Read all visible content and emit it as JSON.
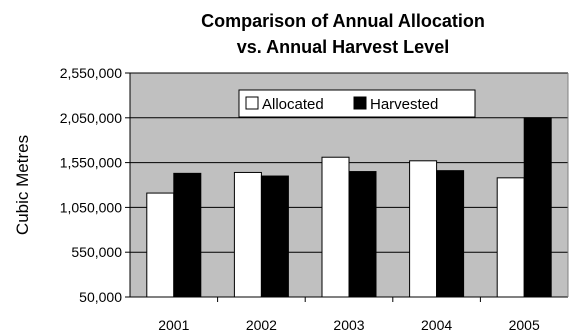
{
  "chart_data": {
    "type": "bar",
    "title": "Comparison of Annual Allocation",
    "subtitle": "vs. Annual Harvest Level",
    "xlabel": "",
    "ylabel": "Cubic Metres",
    "categories": [
      "2001",
      "2002",
      "2003",
      "2004",
      "2005"
    ],
    "series": [
      {
        "name": "Allocated",
        "values": [
          1210000,
          1440000,
          1610000,
          1570000,
          1380000
        ]
      },
      {
        "name": "Harvested",
        "values": [
          1430000,
          1400000,
          1450000,
          1460000,
          2050000
        ]
      }
    ],
    "ylim": [
      50000,
      2550000
    ],
    "yticks": [
      50000,
      550000,
      1050000,
      1550000,
      2050000,
      2550000
    ],
    "ytick_labels": [
      "50,000",
      "550,000",
      "1,050,000",
      "1,550,000",
      "2,050,000",
      "2,550,000"
    ],
    "grid": true,
    "legend_position": "top-center",
    "colors": {
      "plot_background": "#c0c0c0",
      "allocated_fill": "#ffffff",
      "harvested_fill": "#000000"
    }
  }
}
